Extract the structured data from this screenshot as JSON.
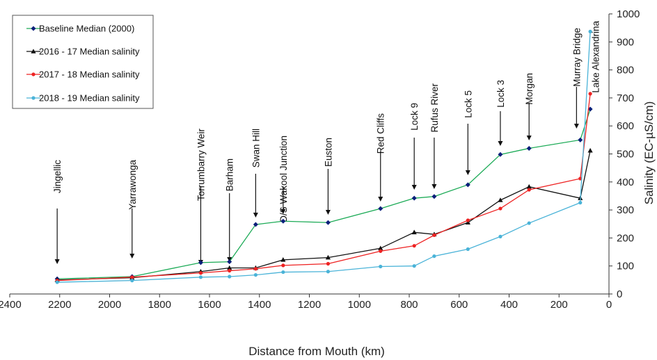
{
  "chart_data": {
    "type": "line",
    "title": "",
    "xlabel": "Distance from Mouth (km)",
    "ylabel": "Salinity (EC-µS/cm)",
    "xlim": [
      2400,
      0
    ],
    "ylim": [
      0,
      1000
    ],
    "x_ticks": [
      "2400",
      "2200",
      "2000",
      "1800",
      "1600",
      "1400",
      "1200",
      "1000",
      "800",
      "600",
      "400",
      "200",
      "0"
    ],
    "y_ticks": [
      "0",
      "100",
      "200",
      "300",
      "400",
      "500",
      "600",
      "700",
      "800",
      "900",
      "1000"
    ],
    "grid": false,
    "legend_position": "top-left",
    "series": [
      {
        "name": "Baseline Median (2000)",
        "color": "#1aaa55",
        "marker_color": "#0a1f7a",
        "marker": "diamond",
        "x": [
          2210,
          1910,
          1635,
          1520,
          1415,
          1305,
          1125,
          915,
          780,
          700,
          565,
          435,
          320,
          115,
          75
        ],
        "y": [
          54,
          62,
          112,
          115,
          248,
          260,
          255,
          305,
          342,
          348,
          390,
          498,
          520,
          550,
          660
        ]
      },
      {
        "name": "2016 - 17 Median salinity",
        "color": "#111111",
        "marker_color": "#111111",
        "marker": "triangle",
        "x": [
          2210,
          1910,
          1635,
          1520,
          1415,
          1305,
          1125,
          915,
          780,
          700,
          565,
          435,
          320,
          115,
          75
        ],
        "y": [
          50,
          58,
          80,
          93,
          93,
          122,
          130,
          163,
          220,
          213,
          255,
          335,
          383,
          342,
          512
        ]
      },
      {
        "name": "2017 - 18 Median salinity",
        "color": "#ee2222",
        "marker_color": "#ee2222",
        "marker": "circle",
        "x": [
          2210,
          1910,
          1635,
          1520,
          1415,
          1305,
          1125,
          915,
          780,
          700,
          565,
          435,
          320,
          115,
          75
        ],
        "y": [
          48,
          60,
          75,
          83,
          90,
          102,
          108,
          153,
          172,
          210,
          263,
          305,
          372,
          412,
          715
        ]
      },
      {
        "name": "2018 - 19 Median salinity",
        "color": "#4ab3d8",
        "marker_color": "#4ab3d8",
        "marker": "circle",
        "x": [
          2210,
          1910,
          1635,
          1520,
          1415,
          1305,
          1125,
          915,
          780,
          700,
          565,
          435,
          320,
          115,
          75
        ],
        "y": [
          42,
          48,
          60,
          62,
          68,
          78,
          80,
          98,
          100,
          135,
          160,
          205,
          253,
          326,
          937
        ]
      }
    ],
    "annotations": [
      {
        "label": "Jingellic",
        "x": 2210,
        "text_top": 230,
        "arrow_top": 300,
        "arrow_tip": 380
      },
      {
        "label": "Yarrawonga",
        "x": 1910,
        "text_top": 230,
        "arrow_top": 300,
        "arrow_tip": 372
      },
      {
        "label": "Torrumbarry Weir",
        "x": 1635,
        "text_top": 185,
        "arrow_top": 268,
        "arrow_tip": 381
      },
      {
        "label": "Barham",
        "x": 1520,
        "text_top": 228,
        "arrow_top": 278,
        "arrow_tip": 377
      },
      {
        "label": "Swan Hill",
        "x": 1415,
        "text_top": 185,
        "arrow_top": 250,
        "arrow_tip": 313
      },
      {
        "label": "D/S Wakool Junction",
        "x": 1305,
        "text_top": 195,
        "arrow_top": 268,
        "arrow_tip": 308
      },
      {
        "label": "Euston",
        "x": 1125,
        "text_top": 198,
        "arrow_top": 243,
        "arrow_tip": 309
      },
      {
        "label": "Red Cliffs",
        "x": 915,
        "text_top": 163,
        "arrow_top": 218,
        "arrow_tip": 290
      },
      {
        "label": "Lock 9",
        "x": 780,
        "text_top": 148,
        "arrow_top": 198,
        "arrow_tip": 273
      },
      {
        "label": "Rufus River",
        "x": 700,
        "text_top": 120,
        "arrow_top": 198,
        "arrow_tip": 272
      },
      {
        "label": "Lock 5",
        "x": 565,
        "text_top": 130,
        "arrow_top": 178,
        "arrow_tip": 252
      },
      {
        "label": "Lock 3",
        "x": 435,
        "text_top": 115,
        "arrow_top": 160,
        "arrow_tip": 210
      },
      {
        "label": "Morgan",
        "x": 320,
        "text_top": 105,
        "arrow_top": 148,
        "arrow_tip": 202
      },
      {
        "label": "Murray Bridge",
        "x": 130,
        "text_top": 40,
        "arrow_top": 125,
        "arrow_tip": 185
      }
    ],
    "end_label": {
      "label": "Lake Alexandrina",
      "x": 55,
      "text_top": 30
    }
  }
}
